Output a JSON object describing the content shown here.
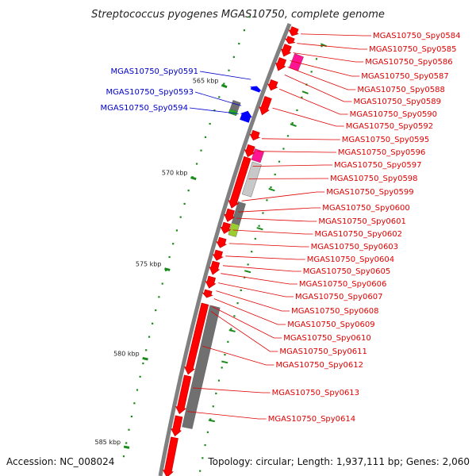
{
  "title": "Streptococcus pyogenes MGAS10750, complete genome",
  "footer": {
    "accession": "Accession: NC_008024",
    "summary": "Topology: circular; Length: 1,937,111 bp; Genes: 2,060"
  },
  "colors": {
    "forward_gene": "#ff0000",
    "reverse_gene": "#0000ff",
    "forward_label": "#e00000",
    "reverse_label": "#0000cc",
    "backbone": "#808080",
    "tick": "#1a8a1a",
    "pink_feature": "#ff1493",
    "gray_feature": "#707070",
    "light_gray_feature": "#c8c8c8",
    "green_feature": "#9acd32"
  },
  "scale": {
    "labels": [
      "565 kbp",
      "570 kbp",
      "575 kbp",
      "580 kbp",
      "585 kbp"
    ]
  },
  "reverse_genes": [
    "MGAS10750_Spy0591",
    "MGAS10750_Spy0593",
    "MGAS10750_Spy0594"
  ],
  "forward_genes": [
    "MGAS10750_Spy0584",
    "MGAS10750_Spy0585",
    "MGAS10750_Spy0586",
    "MGAS10750_Spy0587",
    "MGAS10750_Spy0588",
    "MGAS10750_Spy0589",
    "MGAS10750_Spy0590",
    "MGAS10750_Spy0592",
    "MGAS10750_Spy0595",
    "MGAS10750_Spy0596",
    "MGAS10750_Spy0597",
    "MGAS10750_Spy0598",
    "MGAS10750_Spy0599",
    "MGAS10750_Spy0600",
    "MGAS10750_Spy0601",
    "MGAS10750_Spy0602",
    "MGAS10750_Spy0603",
    "MGAS10750_Spy0604",
    "MGAS10750_Spy0605",
    "MGAS10750_Spy0606",
    "MGAS10750_Spy0607",
    "MGAS10750_Spy0608",
    "MGAS10750_Spy0609",
    "MGAS10750_Spy0610",
    "MGAS10750_Spy0611",
    "MGAS10750_Spy0612",
    "MGAS10750_Spy0613",
    "MGAS10750_Spy0614"
  ]
}
